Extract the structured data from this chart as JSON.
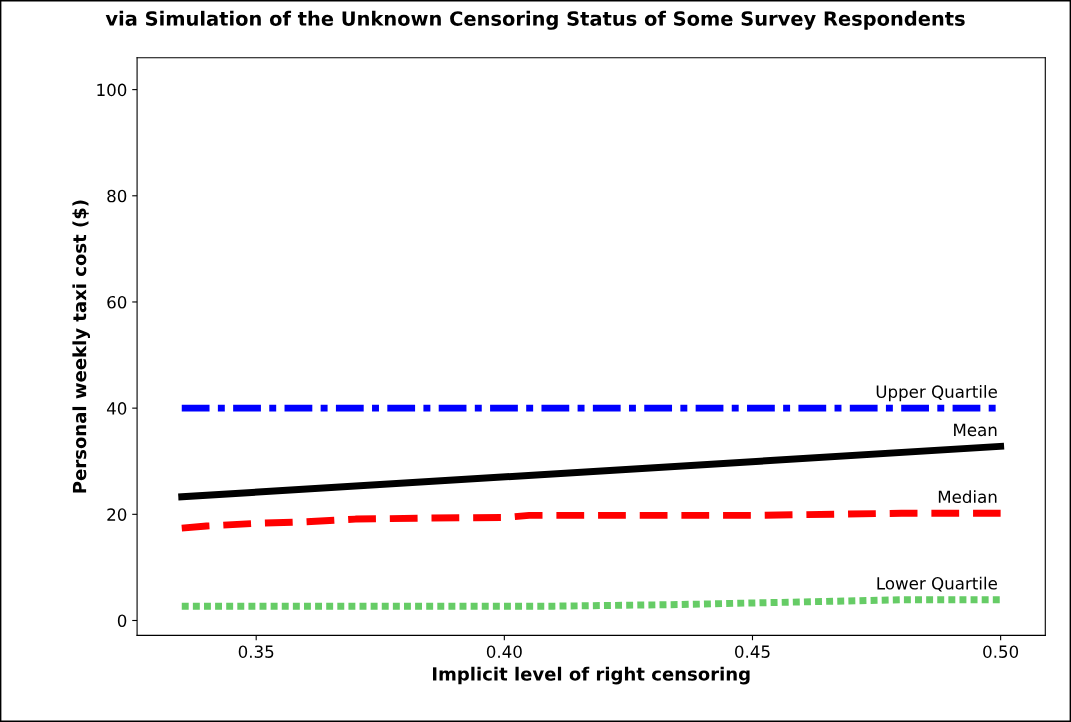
{
  "chart_data": {
    "type": "line",
    "title": "via Simulation of the Unknown Censoring Status of Some Survey Respondents",
    "xlabel": "Implicit level of right censoring",
    "ylabel": "Personal weekly taxi cost ($)",
    "xlim": [
      0.326,
      0.509
    ],
    "xticks": [
      {
        "value": 0.35,
        "label": "0.35"
      },
      {
        "value": 0.4,
        "label": "0.40"
      },
      {
        "value": 0.45,
        "label": "0.45"
      },
      {
        "value": 0.5,
        "label": "0.50"
      }
    ],
    "ylim": [
      -2.8,
      106
    ],
    "yticks": [
      0,
      20,
      40,
      60,
      80,
      100
    ],
    "grid": false,
    "legend": false,
    "marker": "none",
    "series": [
      {
        "name": "Upper Quartile",
        "color": "#0000ff",
        "line_style": "dashdot",
        "x": [
          0.335,
          0.5
        ],
        "values": [
          40,
          40
        ]
      },
      {
        "name": "Mean",
        "color": "#000000",
        "line_style": "solid",
        "x": [
          0.335,
          0.5
        ],
        "values": [
          23.3,
          32.8
        ]
      },
      {
        "name": "Median",
        "color": "#ff0000",
        "line_style": "dashed",
        "x": [
          0.335,
          0.34,
          0.35,
          0.36,
          0.37,
          0.385,
          0.4,
          0.405,
          0.45,
          0.48,
          0.5
        ],
        "values": [
          17.4,
          17.8,
          18.3,
          18.6,
          19.1,
          19.3,
          19.4,
          19.8,
          19.8,
          20.2,
          20.2
        ]
      },
      {
        "name": "Lower Quartile",
        "color": "#66cc66",
        "line_style": "dotted",
        "x": [
          0.335,
          0.41,
          0.435,
          0.46,
          0.48,
          0.5
        ],
        "values": [
          2.7,
          2.7,
          3.0,
          3.5,
          3.9,
          3.9
        ]
      }
    ]
  }
}
